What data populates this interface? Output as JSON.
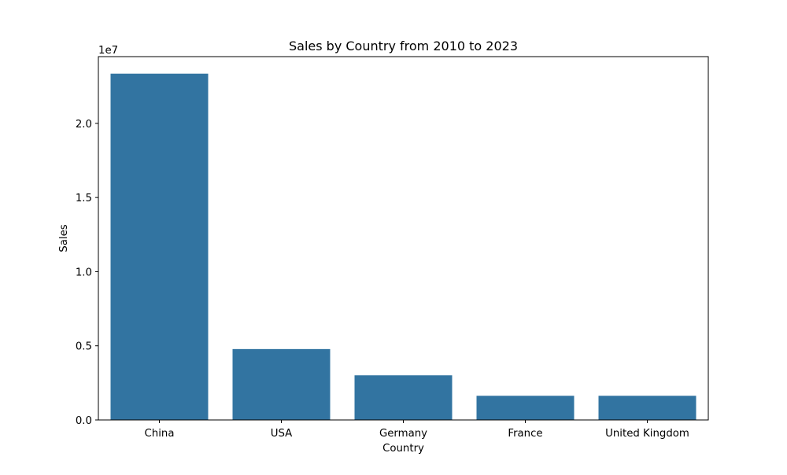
{
  "chart_data": {
    "type": "bar",
    "title": "Sales by Country from 2010 to 2023",
    "xlabel": "Country",
    "ylabel": "Sales",
    "y_offset_label": "1e7",
    "categories": [
      "China",
      "USA",
      "Germany",
      "France",
      "United Kingdom"
    ],
    "values": [
      23350000,
      4780000,
      3010000,
      1630000,
      1630000
    ],
    "ylim": [
      0,
      24500000
    ],
    "y_ticks": [
      0,
      5000000,
      10000000,
      15000000,
      20000000
    ],
    "y_tick_labels": [
      "0.0",
      "0.5",
      "1.0",
      "1.5",
      "2.0"
    ],
    "grid": false,
    "bar_color": "#3274a1"
  }
}
